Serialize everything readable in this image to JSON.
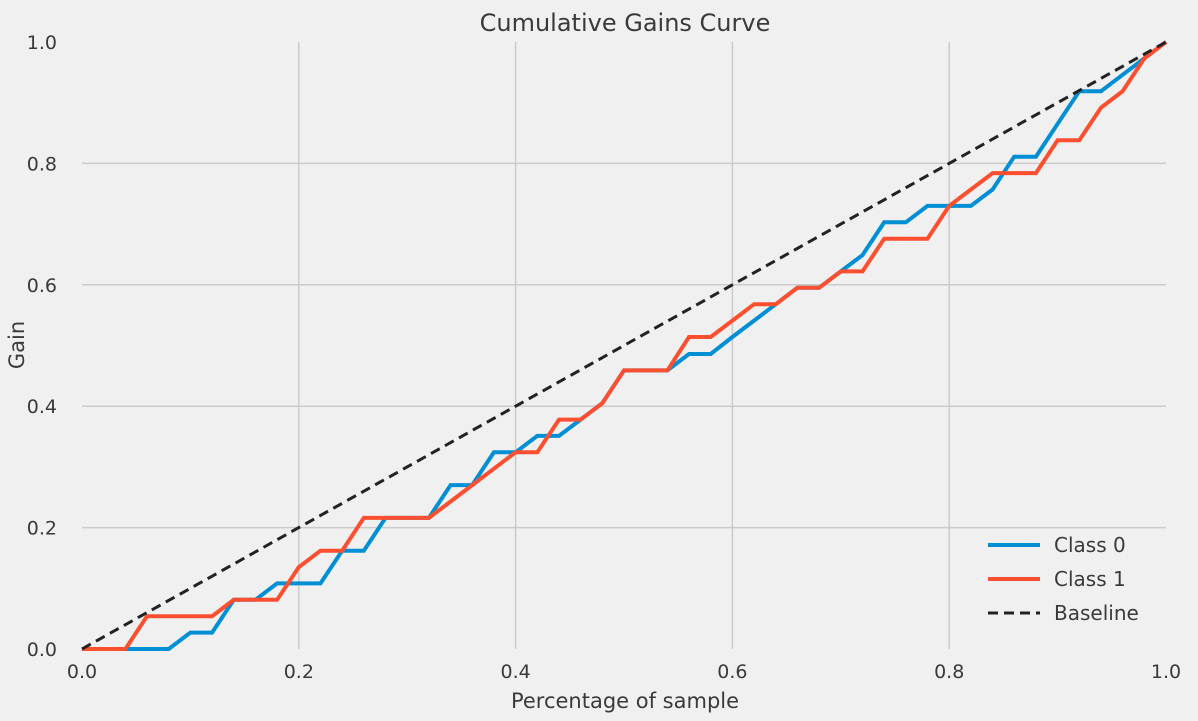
{
  "chart_data": {
    "type": "line",
    "title": "Cumulative Gains Curve",
    "xlabel": "Percentage of sample",
    "ylabel": "Gain",
    "xlim": [
      0,
      1
    ],
    "ylim": [
      0,
      1
    ],
    "xticks": [
      0.0,
      0.2,
      0.4,
      0.6,
      0.8,
      1.0
    ],
    "xtick_labels": [
      "0.0",
      "0.2",
      "0.4",
      "0.6",
      "0.8",
      "1.0"
    ],
    "yticks": [
      0.0,
      0.2,
      0.4,
      0.6,
      0.8,
      1.0
    ],
    "ytick_labels": [
      "0.0",
      "0.2",
      "0.4",
      "0.6",
      "0.8",
      "1.0"
    ],
    "grid": true,
    "legend_position": "bottom-right",
    "background": "#f0f0f0",
    "grid_color": "#cbcbcb",
    "series": [
      {
        "name": "Class 0",
        "color": "#008fd5",
        "style": "solid",
        "x": [
          0,
          0.08,
          0.1,
          0.12,
          0.14,
          0.16,
          0.18,
          0.2,
          0.22,
          0.24,
          0.26,
          0.28,
          0.3,
          0.32,
          0.34,
          0.36,
          0.38,
          0.4,
          0.42,
          0.44,
          0.46,
          0.48,
          0.5,
          0.52,
          0.54,
          0.56,
          0.58,
          0.6,
          0.62,
          0.64,
          0.66,
          0.68,
          0.7,
          0.72,
          0.74,
          0.76,
          0.78,
          0.8,
          0.82,
          0.84,
          0.86,
          0.88,
          0.9,
          0.92,
          0.94,
          0.96,
          0.98,
          1.0
        ],
        "y": [
          0,
          0,
          0.027,
          0.027,
          0.081,
          0.081,
          0.108,
          0.108,
          0.108,
          0.162,
          0.162,
          0.216,
          0.216,
          0.216,
          0.27,
          0.27,
          0.324,
          0.324,
          0.351,
          0.351,
          0.378,
          0.405,
          0.459,
          0.459,
          0.459,
          0.486,
          0.486,
          0.514,
          0.541,
          0.568,
          0.595,
          0.595,
          0.622,
          0.649,
          0.703,
          0.703,
          0.73,
          0.73,
          0.73,
          0.757,
          0.811,
          0.811,
          0.865,
          0.919,
          0.919,
          0.946,
          0.973,
          1.0
        ]
      },
      {
        "name": "Class 1",
        "color": "#fc4f30",
        "style": "solid",
        "x": [
          0,
          0.04,
          0.06,
          0.08,
          0.1,
          0.12,
          0.14,
          0.16,
          0.18,
          0.2,
          0.22,
          0.24,
          0.26,
          0.28,
          0.3,
          0.32,
          0.34,
          0.36,
          0.38,
          0.4,
          0.42,
          0.44,
          0.46,
          0.48,
          0.5,
          0.52,
          0.54,
          0.56,
          0.58,
          0.6,
          0.62,
          0.64,
          0.66,
          0.68,
          0.7,
          0.72,
          0.74,
          0.76,
          0.78,
          0.8,
          0.82,
          0.84,
          0.86,
          0.88,
          0.9,
          0.92,
          0.94,
          0.96,
          0.98,
          1.0
        ],
        "y": [
          0,
          0,
          0.054,
          0.054,
          0.054,
          0.054,
          0.081,
          0.081,
          0.081,
          0.135,
          0.162,
          0.162,
          0.216,
          0.216,
          0.216,
          0.216,
          0.243,
          0.27,
          0.297,
          0.324,
          0.324,
          0.378,
          0.378,
          0.405,
          0.459,
          0.459,
          0.459,
          0.514,
          0.514,
          0.541,
          0.568,
          0.568,
          0.595,
          0.595,
          0.622,
          0.622,
          0.676,
          0.676,
          0.676,
          0.73,
          0.757,
          0.784,
          0.784,
          0.784,
          0.838,
          0.838,
          0.892,
          0.919,
          0.973,
          1.0
        ]
      },
      {
        "name": "Baseline",
        "color": "#222222",
        "style": "dashed",
        "x": [
          0,
          1
        ],
        "y": [
          0,
          1
        ]
      }
    ]
  }
}
